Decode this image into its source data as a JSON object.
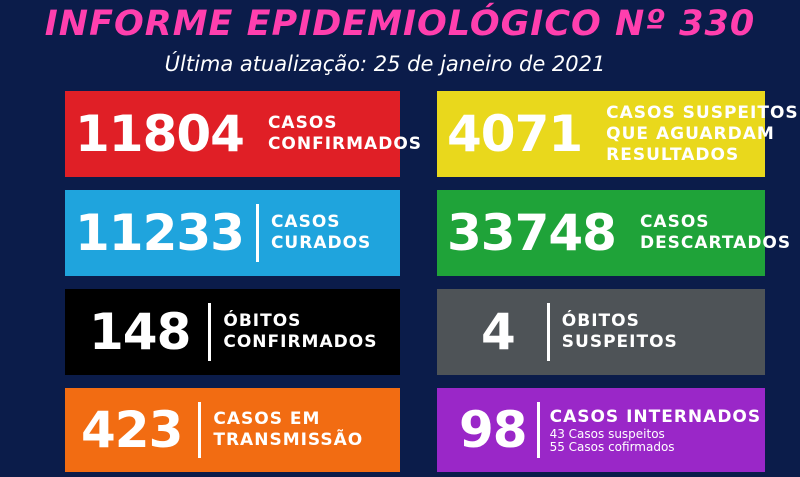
{
  "header": {
    "title": "INFORME EPIDEMIOLÓGICO Nº 330",
    "subtitle": "Última atualização: 25 de janeiro de 2021"
  },
  "cards": [
    {
      "value": "11804",
      "label1": "CASOS",
      "label2": "CONFIRMADOS",
      "color": "#e01f26"
    },
    {
      "value": "4071",
      "label1": "CASOS SUSPEITOS",
      "label2": "QUE AGUARDAM",
      "label3": "RESULTADOS",
      "color": "#e9d81c"
    },
    {
      "value": "11233",
      "label1": "CASOS",
      "label2": "CURADOS",
      "color": "#1fa4dd"
    },
    {
      "value": "33748",
      "label1": "CASOS",
      "label2": "DESCARTADOS",
      "color": "#1fa339"
    },
    {
      "value": "148",
      "label1": "ÓBITOS",
      "label2": "CONFIRMADOS",
      "color": "#000000"
    },
    {
      "value": "4",
      "label1": "ÓBITOS",
      "label2": "SUSPEITOS",
      "color": "#4e5357"
    },
    {
      "value": "423",
      "label1": "CASOS EM",
      "label2": "TRANSMISSÃO",
      "color": "#f26c12"
    },
    {
      "value": "98",
      "label1": "CASOS INTERNADOS",
      "sub1": "43 Casos suspeitos",
      "sub2": "55 Casos cofirmados",
      "color": "#9a27c8"
    }
  ]
}
